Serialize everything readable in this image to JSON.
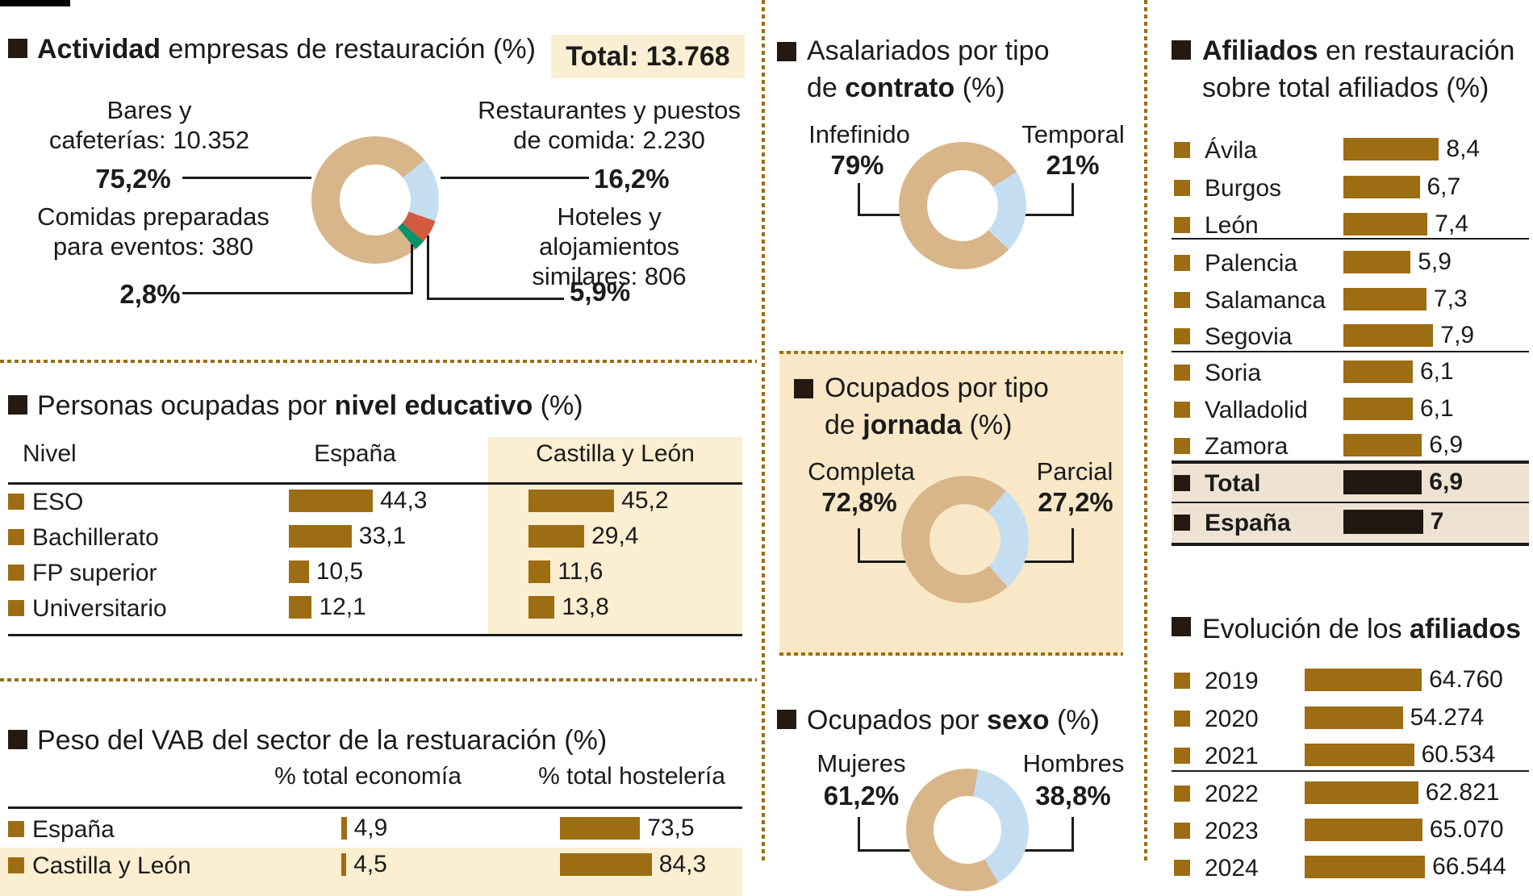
{
  "page": {
    "background": "#ffffff",
    "accent_brown": "#9C6D12",
    "tan": "#D8B68A",
    "light_blue": "#C5DDF0",
    "red": "#D15A41",
    "green": "#069468",
    "cream": "#FBEED1",
    "cream_box": "#F8E8C7",
    "highlight_row": "#EEE2D3",
    "black_bar": "#211911"
  },
  "chart_data": [
    {
      "id": "actividad",
      "type": "pie",
      "title_bold": "Actividad",
      "title_rest": " empresas de restauración (%)",
      "total_label": "Total: 13.768",
      "donut": {
        "from": 51,
        "segments": [
          {
            "label": "Restaurantes y puestos de comida",
            "value": 2230,
            "pct": 16.2,
            "color": "#C5DDF0"
          },
          {
            "label": "Hoteles y alojamientos similares",
            "value": 806,
            "pct": 5.9,
            "color": "#D15A41"
          },
          {
            "label": "Comidas preparadas para eventos",
            "value": 380,
            "pct": 2.8,
            "color": "#069468"
          },
          {
            "label": "Bares y cafeterías",
            "value": 10352,
            "pct": 75.2,
            "color": "#D8B68A"
          }
        ]
      },
      "callouts": {
        "bares_l1": "Bares y",
        "bares_l2": "cafeterías: 10.352",
        "bares_pct": "75,2%",
        "rest_l1": "Restaurantes y puestos",
        "rest_l2": "de comida: 2.230",
        "rest_pct": "16,2%",
        "comidas_l1": "Comidas preparadas",
        "comidas_l2": "para eventos: 380",
        "comidas_pct": "2,8%",
        "hoteles_l1": "Hoteles y alojamientos",
        "hoteles_l2": "similares: 806",
        "hoteles_pct": "5,9%"
      }
    },
    {
      "id": "educativo",
      "type": "bar",
      "title_pre": "Personas ocupadas por ",
      "title_bold": "nivel educativo",
      "title_post": " (%)",
      "columns": {
        "nivel": "Nivel",
        "espana": "España",
        "cyl": "Castilla y León"
      },
      "rows": [
        {
          "label": "ESO",
          "espana": 44.3,
          "espana_d": "44,3",
          "cyl": 45.2,
          "cyl_d": "45,2"
        },
        {
          "label": "Bachillerato",
          "espana": 33.1,
          "espana_d": "33,1",
          "cyl": 29.4,
          "cyl_d": "29,4"
        },
        {
          "label": "FP superior",
          "espana": 10.5,
          "espana_d": "10,5",
          "cyl": 11.6,
          "cyl_d": "11,6"
        },
        {
          "label": "Universitario",
          "espana": 12.1,
          "espana_d": "12,1",
          "cyl": 13.8,
          "cyl_d": "13,8"
        }
      ]
    },
    {
      "id": "vab",
      "type": "bar",
      "title": "Peso del VAB del sector de la restuaración (%)",
      "columns": {
        "economia": "% total economía",
        "hosteleria": "% total hostelería"
      },
      "rows": [
        {
          "label": "España",
          "economia": 4.9,
          "economia_d": "4,9",
          "hosteleria": 73.5,
          "hosteleria_d": "73,5"
        },
        {
          "label": "Castilla y León",
          "economia": 4.5,
          "economia_d": "4,5",
          "hosteleria": 84.3,
          "hosteleria_d": "84,3"
        }
      ]
    },
    {
      "id": "contrato",
      "type": "pie",
      "title_l1": "Asalariados por tipo",
      "title_l2_pre": "de ",
      "title_l2_bold": "contrato",
      "title_l2_post": " (%)",
      "left_label": "Infefinido",
      "left_pct": "79%",
      "right_label": "Temporal",
      "right_pct": "21%",
      "donut": {
        "from": 58,
        "segments": [
          {
            "label": "Temporal",
            "pct": 21,
            "color": "#C5DDF0"
          },
          {
            "label": "Indefinido",
            "pct": 79,
            "color": "#D8B68A"
          }
        ]
      }
    },
    {
      "id": "jornada",
      "type": "pie",
      "title_l1": "Ocupados por tipo",
      "title_l2_pre": "de ",
      "title_l2_bold": "jornada",
      "title_l2_post": " (%)",
      "left_label": "Completa",
      "left_pct": "72,8%",
      "right_label": "Parcial",
      "right_pct": "27,2%",
      "donut": {
        "from": 40,
        "segments": [
          {
            "label": "Parcial",
            "pct": 27.2,
            "color": "#C5DDF0"
          },
          {
            "label": "Completa",
            "pct": 72.8,
            "color": "#D8B68A"
          }
        ]
      }
    },
    {
      "id": "sexo",
      "type": "pie",
      "title_pre": "Ocupados por ",
      "title_bold": "sexo",
      "title_post": " (%)",
      "left_label": "Mujeres",
      "left_pct": "61,2%",
      "right_label": "Hombres",
      "right_pct": "38,8%",
      "donut": {
        "from": 10,
        "segments": [
          {
            "label": "Hombres",
            "pct": 38.8,
            "color": "#C5DDF0"
          },
          {
            "label": "Mujeres",
            "pct": 61.2,
            "color": "#D8B68A"
          }
        ]
      }
    },
    {
      "id": "afiliados",
      "type": "bar",
      "title_bold": "Afiliados",
      "title_l1_rest": " en restauración",
      "title_l2": "sobre total afiliados (%)",
      "rows": [
        {
          "label": "Ávila",
          "value": 8.4,
          "display": "8,4"
        },
        {
          "label": "Burgos",
          "value": 6.7,
          "display": "6,7"
        },
        {
          "label": "León",
          "value": 7.4,
          "display": "7,4"
        },
        {
          "label": "Palencia",
          "value": 5.9,
          "display": "5,9"
        },
        {
          "label": "Salamanca",
          "value": 7.3,
          "display": "7,3"
        },
        {
          "label": "Segovia",
          "value": 7.9,
          "display": "7,9"
        },
        {
          "label": "Soria",
          "value": 6.1,
          "display": "6,1"
        },
        {
          "label": "Valladolid",
          "value": 6.1,
          "display": "6,1"
        },
        {
          "label": "Zamora",
          "value": 6.9,
          "display": "6,9"
        },
        {
          "label": "Total",
          "value": 6.9,
          "display": "6,9"
        },
        {
          "label": "España",
          "value": 7,
          "display": "7"
        }
      ]
    },
    {
      "id": "evolucion",
      "type": "bar",
      "title_pre": "Evolución de los ",
      "title_bold": "afiliados",
      "rows": [
        {
          "label": "2019",
          "value": 64760,
          "display": "64.760"
        },
        {
          "label": "2020",
          "value": 54274,
          "display": "54.274"
        },
        {
          "label": "2021",
          "value": 60534,
          "display": "60.534"
        },
        {
          "label": "2022",
          "value": 62821,
          "display": "62.821"
        },
        {
          "label": "2023",
          "value": 65070,
          "display": "65.070"
        },
        {
          "label": "2024",
          "value": 66544,
          "display": "66.544"
        }
      ]
    }
  ]
}
